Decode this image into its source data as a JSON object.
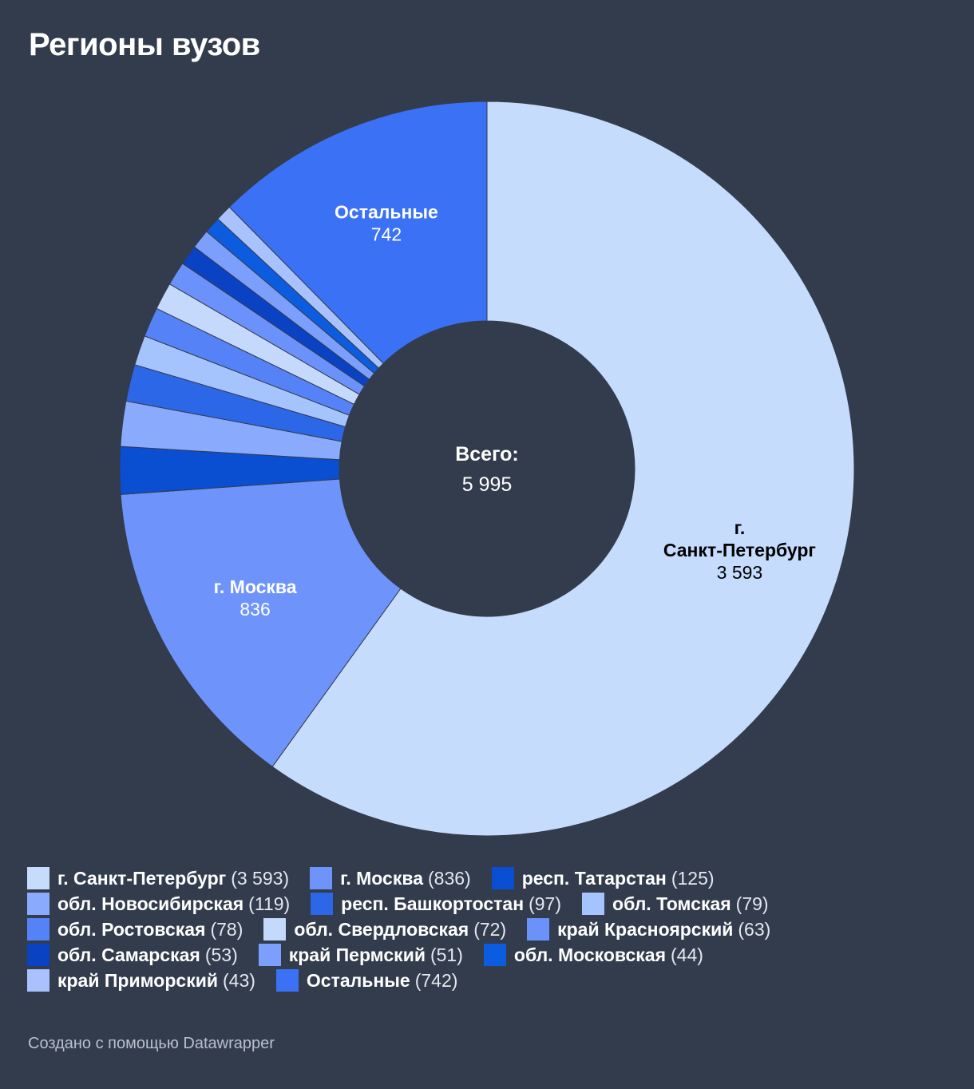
{
  "title": "Регионы вузов",
  "footer": "Создано с помощью Datawrapper",
  "center_label": {
    "title": "Всего:",
    "value": "5 995"
  },
  "chart_data": {
    "type": "pie",
    "donut": true,
    "title": "Регионы вузов",
    "total": 5995,
    "legend_position": "bottom",
    "slices": [
      {
        "name": "г. Санкт-Петербург",
        "value": 3593,
        "display": "3 593",
        "color": "#c5dcfd",
        "slice_label_lines": [
          "г.",
          "Санкт-Петербург"
        ],
        "slice_label_color": "#000000"
      },
      {
        "name": "г. Москва",
        "value": 836,
        "display": "836",
        "color": "#6e94fb",
        "slice_label_lines": [
          "г. Москва"
        ],
        "slice_label_color": "#ffffff"
      },
      {
        "name": "респ. Татарстан",
        "value": 125,
        "display": "125",
        "color": "#0a4fd2"
      },
      {
        "name": "обл. Новосибирская",
        "value": 119,
        "display": "119",
        "color": "#8aaafe"
      },
      {
        "name": "респ. Башкортостан",
        "value": 97,
        "display": "97",
        "color": "#2c67e8"
      },
      {
        "name": "обл. Томская",
        "value": 79,
        "display": "79",
        "color": "#a5c3fd"
      },
      {
        "name": "обл. Ростовская",
        "value": 78,
        "display": "78",
        "color": "#5582f6"
      },
      {
        "name": "обл. Свердловская",
        "value": 72,
        "display": "72",
        "color": "#c4d9fc"
      },
      {
        "name": "край Красноярский",
        "value": 63,
        "display": "63",
        "color": "#6b91fa"
      },
      {
        "name": "обл. Самарская",
        "value": 53,
        "display": "53",
        "color": "#0942c2"
      },
      {
        "name": "край Пермский",
        "value": 51,
        "display": "51",
        "color": "#7c9efc"
      },
      {
        "name": "обл. Московская",
        "value": 44,
        "display": "44",
        "color": "#0c5ce0"
      },
      {
        "name": "край Приморский",
        "value": 43,
        "display": "43",
        "color": "#a9c2fd"
      },
      {
        "name": "Остальные",
        "value": 742,
        "display": "742",
        "color": "#3b71f4",
        "slice_label_lines": [
          "Остальные"
        ],
        "slice_label_color": "#ffffff"
      }
    ]
  }
}
